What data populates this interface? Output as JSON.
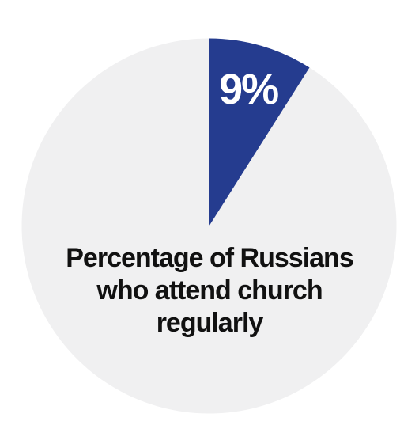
{
  "chart_data": {
    "type": "pie",
    "title": "Percentage of Russians who attend church regularly",
    "values": [
      9,
      91
    ],
    "value_labels": [
      "9%",
      null
    ],
    "colors": [
      "#253c8f",
      "#f0f0f1"
    ]
  }
}
